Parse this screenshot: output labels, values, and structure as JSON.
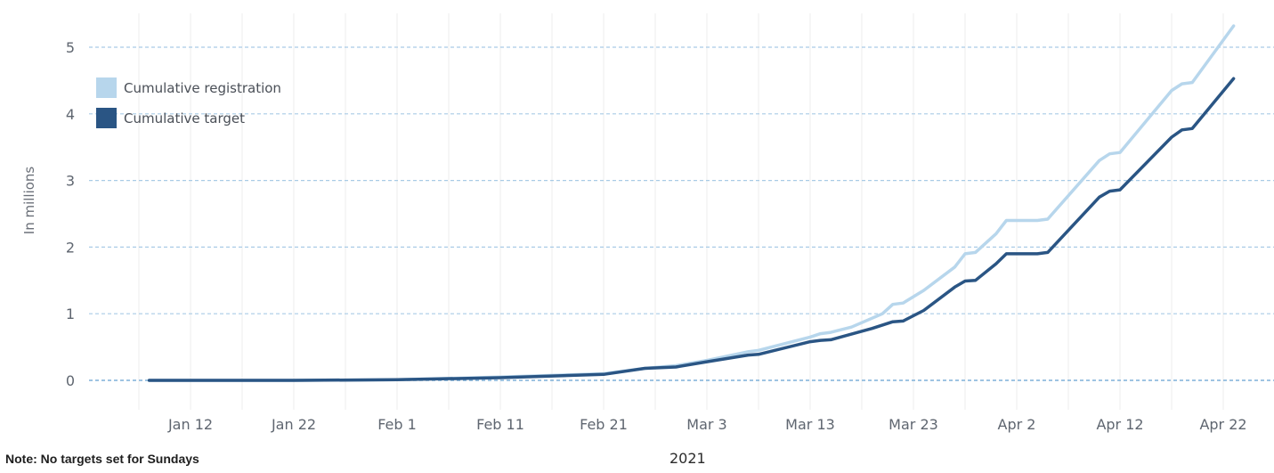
{
  "note": "Note: No targets set for Sundays",
  "chart_data": {
    "type": "line",
    "ylabel": "In millions",
    "xlabel": "2021",
    "ylim": [
      0,
      5.5
    ],
    "yticks": [
      0,
      1,
      2,
      3,
      4,
      5
    ],
    "xticks": [
      "Jan 12",
      "Jan 22",
      "Feb 1",
      "Feb 11",
      "Feb 21",
      "Mar 3",
      "Mar 13",
      "Mar 23",
      "Apr 2",
      "Apr 12",
      "Apr 22"
    ],
    "xlim": [
      "2021-01-06",
      "2021-04-26"
    ],
    "grid": {
      "horizontal_dashed": true,
      "vertical": true
    },
    "legend_position": "top-left",
    "series": [
      {
        "name": "Cumulative registration",
        "color": "#b7d6ec",
        "points": [
          [
            "2021-01-08",
            0.0
          ],
          [
            "2021-01-22",
            0.0
          ],
          [
            "2021-02-01",
            0.01
          ],
          [
            "2021-02-11",
            0.05
          ],
          [
            "2021-02-21",
            0.1
          ],
          [
            "2021-02-25",
            0.18
          ],
          [
            "2021-02-28",
            0.22
          ],
          [
            "2021-03-03",
            0.3
          ],
          [
            "2021-03-07",
            0.43
          ],
          [
            "2021-03-08",
            0.45
          ],
          [
            "2021-03-13",
            0.65
          ],
          [
            "2021-03-14",
            0.7
          ],
          [
            "2021-03-15",
            0.72
          ],
          [
            "2021-03-17",
            0.8
          ],
          [
            "2021-03-20",
            1.0
          ],
          [
            "2021-03-21",
            1.14
          ],
          [
            "2021-03-22",
            1.16
          ],
          [
            "2021-03-24",
            1.35
          ],
          [
            "2021-03-27",
            1.7
          ],
          [
            "2021-03-28",
            1.9
          ],
          [
            "2021-03-29",
            1.92
          ],
          [
            "2021-03-31",
            2.2
          ],
          [
            "2021-04-01",
            2.4
          ],
          [
            "2021-04-04",
            2.4
          ],
          [
            "2021-04-05",
            2.42
          ],
          [
            "2021-04-10",
            3.3
          ],
          [
            "2021-04-11",
            3.4
          ],
          [
            "2021-04-12",
            3.42
          ],
          [
            "2021-04-17",
            4.35
          ],
          [
            "2021-04-18",
            4.45
          ],
          [
            "2021-04-19",
            4.47
          ],
          [
            "2021-04-23",
            5.32
          ]
        ]
      },
      {
        "name": "Cumulative target",
        "color": "#2a5584",
        "points": [
          [
            "2021-01-08",
            0.0
          ],
          [
            "2021-01-22",
            0.0
          ],
          [
            "2021-02-01",
            0.01
          ],
          [
            "2021-02-11",
            0.04
          ],
          [
            "2021-02-21",
            0.09
          ],
          [
            "2021-02-25",
            0.18
          ],
          [
            "2021-02-28",
            0.2
          ],
          [
            "2021-03-03",
            0.28
          ],
          [
            "2021-03-07",
            0.38
          ],
          [
            "2021-03-08",
            0.39
          ],
          [
            "2021-03-13",
            0.58
          ],
          [
            "2021-03-14",
            0.6
          ],
          [
            "2021-03-15",
            0.61
          ],
          [
            "2021-03-19",
            0.78
          ],
          [
            "2021-03-21",
            0.88
          ],
          [
            "2021-03-22",
            0.89
          ],
          [
            "2021-03-24",
            1.05
          ],
          [
            "2021-03-27",
            1.4
          ],
          [
            "2021-03-28",
            1.49
          ],
          [
            "2021-03-29",
            1.5
          ],
          [
            "2021-03-31",
            1.75
          ],
          [
            "2021-04-01",
            1.9
          ],
          [
            "2021-04-04",
            1.9
          ],
          [
            "2021-04-05",
            1.92
          ],
          [
            "2021-04-10",
            2.75
          ],
          [
            "2021-04-11",
            2.84
          ],
          [
            "2021-04-12",
            2.86
          ],
          [
            "2021-04-17",
            3.65
          ],
          [
            "2021-04-18",
            3.76
          ],
          [
            "2021-04-19",
            3.78
          ],
          [
            "2021-04-23",
            4.53
          ]
        ]
      }
    ]
  }
}
